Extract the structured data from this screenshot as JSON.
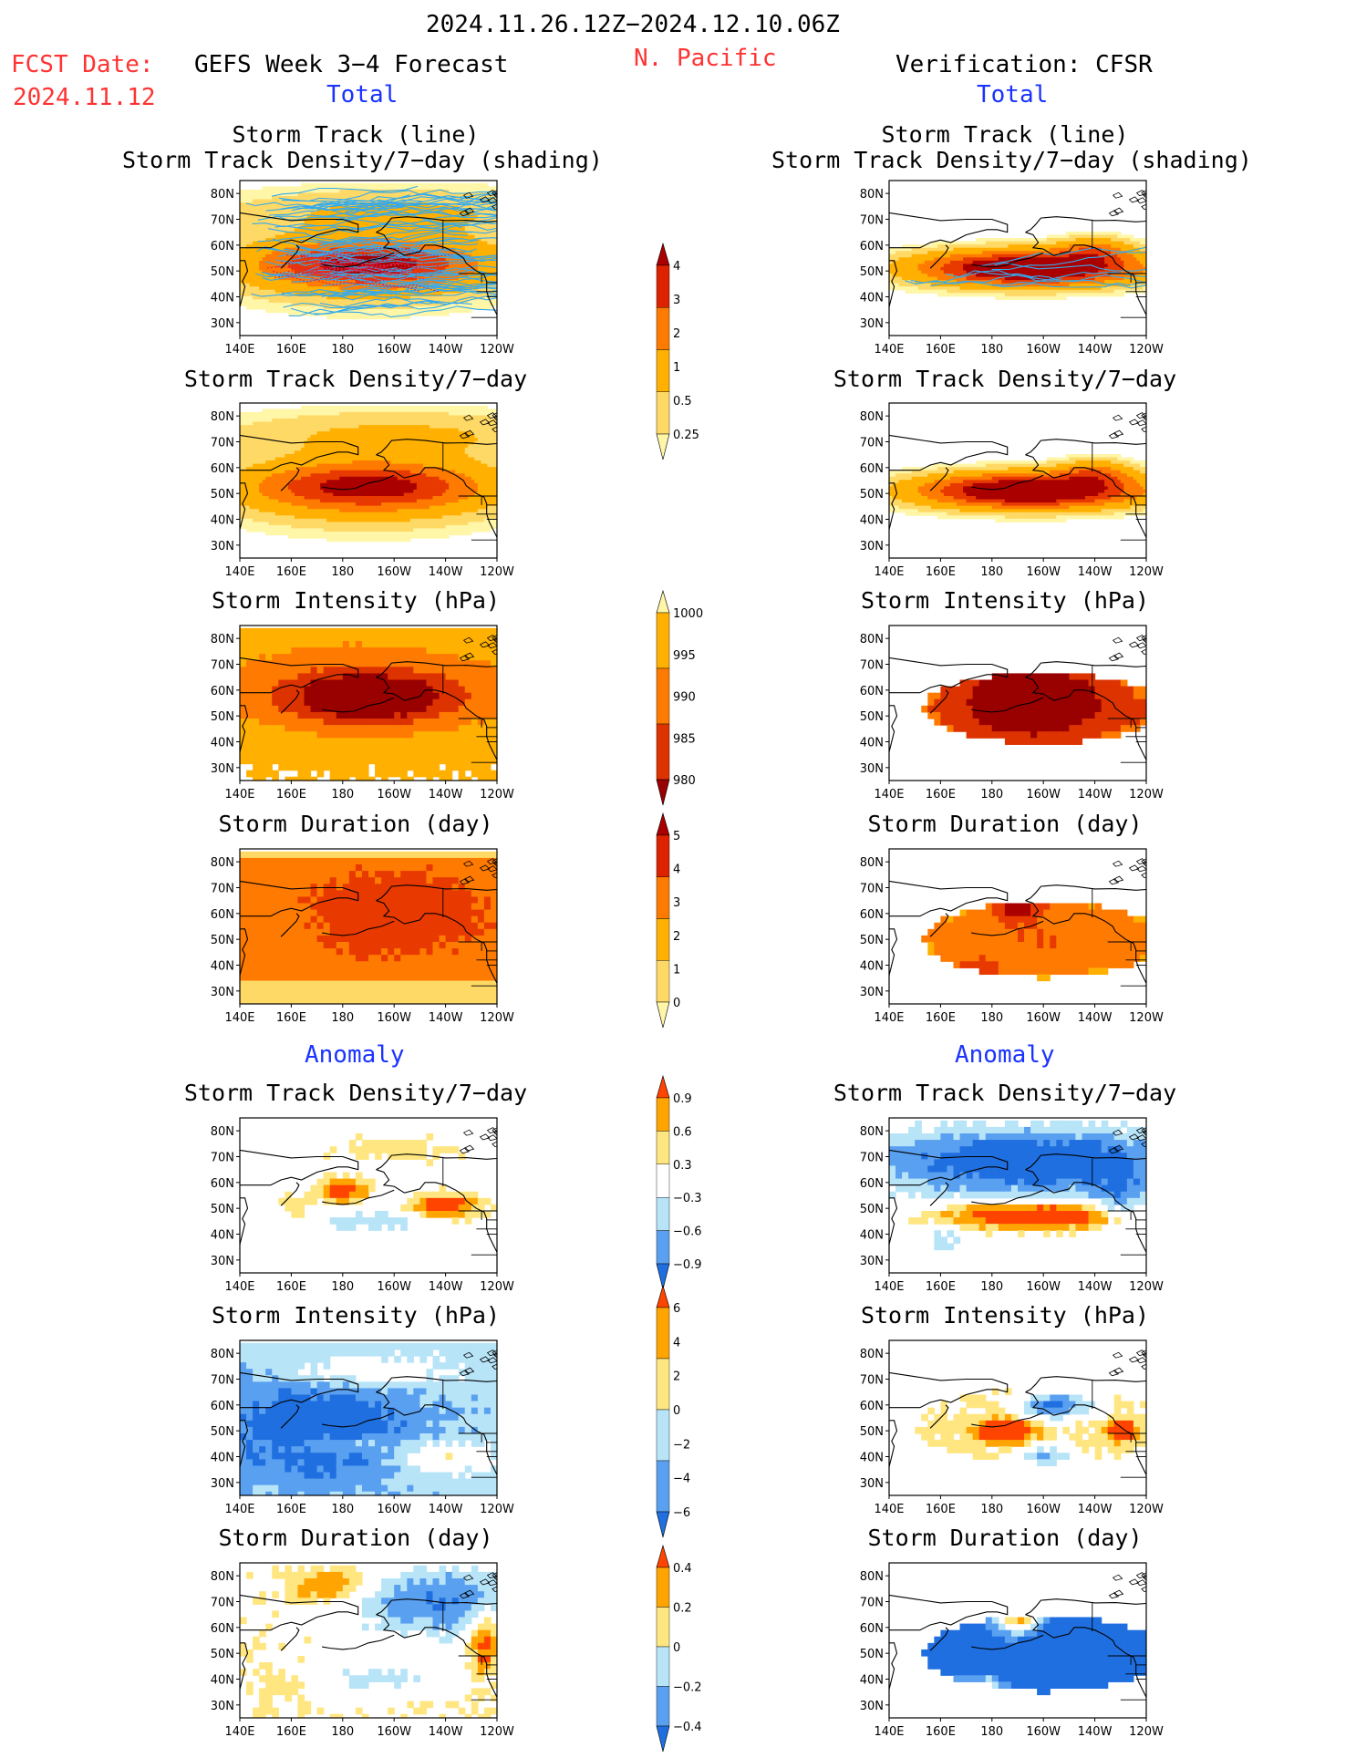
{
  "header": {
    "period": "2024.11.26.12Z−2024.12.10.06Z",
    "region": "N. Pacific",
    "fcst_label": "FCST Date:",
    "fcst_date": "2024.11.12",
    "left_title": "GEFS Week 3−4 Forecast",
    "right_title": "Verification: CFSR",
    "total_label": "Total",
    "anomaly_label": "Anomaly"
  },
  "panel_titles": {
    "track_line": "Storm Track (line)",
    "track_shading": "Storm Track Density/7−day (shading)",
    "density": "Storm Track Density/7−day",
    "intensity": "Storm Intensity (hPa)",
    "duration": "Storm Duration (day)"
  },
  "axes": {
    "lat_labels": [
      "80N",
      "70N",
      "60N",
      "50N",
      "40N",
      "30N"
    ],
    "lon_labels": [
      "140E",
      "160E",
      "180",
      "160W",
      "140W",
      "120W"
    ]
  },
  "colorbars": {
    "density_total": [
      "4",
      "3",
      "2",
      "1",
      "0.5",
      "0.25"
    ],
    "intensity_total": [
      "1000",
      "995",
      "990",
      "985",
      "980"
    ],
    "duration_total": [
      "5",
      "4",
      "3",
      "2",
      "1",
      "0"
    ],
    "density_anomaly": [
      "0.9",
      "0.6",
      "0.3",
      "−0.3",
      "−0.6",
      "−0.9"
    ],
    "intensity_anomaly": [
      "6",
      "4",
      "2",
      "0",
      "−2",
      "−4",
      "−6"
    ],
    "duration_anomaly": [
      "0.4",
      "0.2",
      "0",
      "−0.2",
      "−0.4"
    ]
  },
  "colors": {
    "warm": [
      "#fff6a8",
      "#ffd966",
      "#ffb000",
      "#ff7a00",
      "#e83a00",
      "#aa0000"
    ],
    "intensity": [
      "#fff6a8",
      "#ffb000",
      "#ff7a00",
      "#dd3300",
      "#990000"
    ],
    "diverging": [
      "#1f6fe0",
      "#5aa0f0",
      "#b8e4f8",
      "#ffffff",
      "#ffe680",
      "#ffa400",
      "#ff4400"
    ],
    "track_line": "#33aaee",
    "track_line_forecast_core": "#dd2244"
  }
}
